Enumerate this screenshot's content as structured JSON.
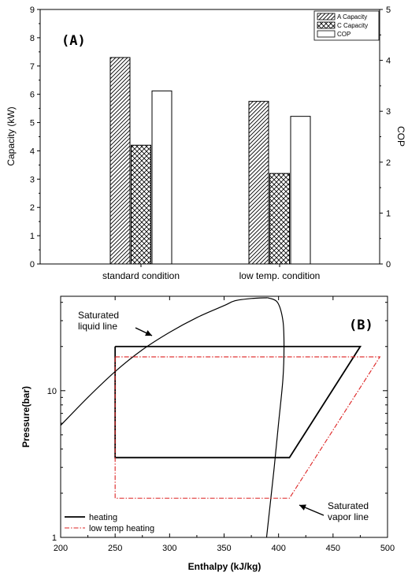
{
  "chart_data": [
    {
      "type": "bar",
      "panel_label": "(A)",
      "categories": [
        "standard condition",
        "low temp. condition"
      ],
      "series": [
        {
          "name": "A Capacity",
          "axis": "left",
          "pattern": "hatch",
          "values": [
            7.3,
            5.75
          ]
        },
        {
          "name": "C Capacity",
          "axis": "left",
          "pattern": "crosshatch",
          "values": [
            4.2,
            3.2
          ]
        },
        {
          "name": "COP",
          "axis": "right",
          "pattern": "none",
          "values": [
            3.4,
            2.9
          ]
        }
      ],
      "ylabel": "Capacity (kW)",
      "ylim": [
        0,
        9
      ],
      "yticks": [
        "0",
        "1",
        "2",
        "3",
        "4",
        "5",
        "6",
        "7",
        "8",
        "9"
      ],
      "y2label": "COP",
      "y2lim": [
        0,
        5
      ],
      "y2ticks": [
        "0",
        "1",
        "2",
        "3",
        "4",
        "5"
      ],
      "legend_position": "top-right",
      "grid": false
    },
    {
      "type": "line",
      "panel_label": "(B)",
      "xlabel": "Enthalpy (kJ/kg)",
      "ylabel": "Pressure(bar)",
      "xlim": [
        200,
        500
      ],
      "xticks": [
        "200",
        "250",
        "300",
        "350",
        "400",
        "450",
        "500"
      ],
      "ylim": [
        1,
        44
      ],
      "yscale": "log",
      "yticks": [
        "1",
        "10"
      ],
      "legend_position": "bottom-left",
      "grid": false,
      "series": [
        {
          "name": "heating",
          "style": "solid",
          "color": "#000000",
          "points": [
            [
              250,
              20
            ],
            [
              475,
              20
            ],
            [
              410,
              3.5
            ],
            [
              250,
              3.5
            ],
            [
              250,
              20
            ]
          ]
        },
        {
          "name": "low temp heating",
          "style": "dash-dot",
          "color": "#dd2222",
          "points": [
            [
              250,
              17
            ],
            [
              493,
              17
            ],
            [
              410,
              1.85
            ],
            [
              250,
              1.85
            ],
            [
              250,
              17
            ]
          ]
        }
      ],
      "curves": [
        {
          "role": "liquid",
          "style": "solid",
          "color": "#000000",
          "points": [
            [
              200,
              5.8
            ],
            [
              225,
              9
            ],
            [
              250,
              13.5
            ],
            [
              275,
              19
            ],
            [
              300,
              25
            ],
            [
              325,
              31.5
            ],
            [
              350,
              38
            ],
            [
              360,
              41
            ],
            [
              375,
              42.5
            ],
            [
              390,
              43
            ]
          ]
        },
        {
          "role": "vapor",
          "style": "solid",
          "color": "#000000",
          "points": [
            [
              390,
              43
            ],
            [
              399,
              40
            ],
            [
              404,
              30
            ],
            [
              405,
              20
            ],
            [
              404,
              12
            ],
            [
              400,
              6
            ],
            [
              396,
              3
            ],
            [
              392,
              1.6
            ],
            [
              389,
              1
            ]
          ]
        }
      ],
      "annotations": [
        {
          "text_lines": [
            "Saturated",
            "liquid line"
          ],
          "points_to": [
            290,
            23
          ]
        },
        {
          "text_lines": [
            "Saturated",
            "vapor line"
          ],
          "points_to": [
            395,
            2.3
          ]
        }
      ]
    }
  ]
}
